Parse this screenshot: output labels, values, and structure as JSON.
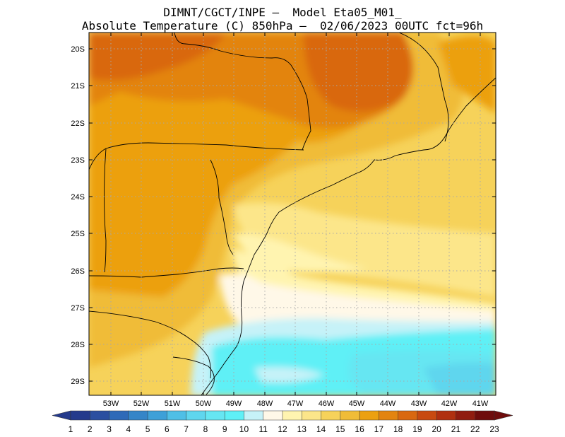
{
  "header": {
    "title_line1": "DIMNT/CGCT/INPE —  Model Eta05_M01_",
    "title_line2": "Absolute Temperature (C) 850hPa —  02/06/2023 00UTC fct=96h"
  },
  "map": {
    "lat_labels": [
      "20S",
      "21S",
      "22S",
      "23S",
      "24S",
      "25S",
      "26S",
      "27S",
      "28S",
      "29S"
    ],
    "lon_labels": [
      "53W",
      "52W",
      "51W",
      "50W",
      "49W",
      "48W",
      "47W",
      "46W",
      "45W",
      "44W",
      "43W",
      "42W",
      "41W"
    ],
    "region": "Southeastern and southern Brazil with adjacent Atlantic Ocean"
  },
  "colorbar": {
    "labels": [
      "1",
      "2",
      "3",
      "4",
      "5",
      "6",
      "7",
      "8",
      "9",
      "10",
      "11",
      "12",
      "13",
      "14",
      "15",
      "16",
      "17",
      "18",
      "19",
      "20",
      "21",
      "22",
      "23"
    ],
    "colors": [
      "#243a8c",
      "#2b4fa0",
      "#2f6ab8",
      "#3585c8",
      "#3ea0d8",
      "#4fbfe6",
      "#5fd6ee",
      "#66e6f2",
      "#5ff0f6",
      "#c6f2f8",
      "#fff8e8",
      "#fff4b0",
      "#fce68a",
      "#f6d25a",
      "#f0bc38",
      "#eca010",
      "#e38410",
      "#d96810",
      "#c84a10",
      "#b03010",
      "#901c10",
      "#6e0c0c"
    ]
  }
}
